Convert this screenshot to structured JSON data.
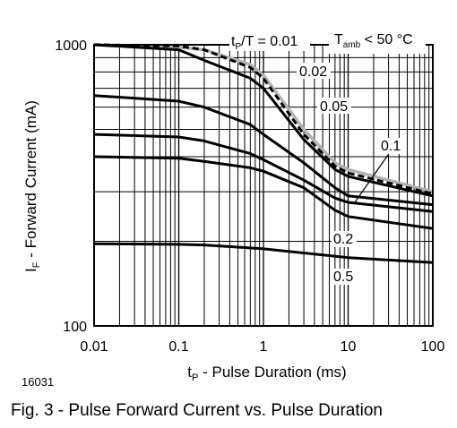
{
  "chart_data": {
    "type": "line",
    "xscale": "log",
    "yscale": "log",
    "xlim": [
      0.01,
      100
    ],
    "ylim": [
      100,
      1000
    ],
    "grid": true,
    "xticks": [
      "0.01",
      "0.1",
      "1",
      "10",
      "100"
    ],
    "yticks": [
      "100",
      "1000"
    ],
    "ylabel": "I_F - Forward Current (mA)",
    "xlabel": "t_P - Pulse Duration (ms)",
    "figure_id": "16031",
    "caption": "Fig. 3 - Pulse Forward Current vs. Pulse Duration",
    "condition": "T_amb < 50 °C",
    "series": [
      {
        "name": "t_P/T = 0.01",
        "style": "gray",
        "x": [
          0.01,
          0.1,
          0.2,
          0.7,
          1,
          3,
          7,
          10,
          100
        ],
        "y": [
          1000,
          980,
          960,
          850,
          780,
          500,
          380,
          360,
          300
        ]
      },
      {
        "name": "dashed",
        "style": "dashed",
        "x": [
          0.01,
          0.1,
          0.2,
          0.7,
          1,
          3,
          7,
          10,
          100
        ],
        "y": [
          1000,
          990,
          960,
          830,
          760,
          480,
          370,
          350,
          295
        ]
      },
      {
        "name": "0.02",
        "style": "solid",
        "x": [
          0.01,
          0.1,
          0.2,
          0.7,
          1,
          3,
          7,
          10,
          100
        ],
        "y": [
          1000,
          960,
          880,
          760,
          700,
          460,
          360,
          340,
          290
        ]
      },
      {
        "name": "0.05",
        "style": "solid",
        "x": [
          0.01,
          0.1,
          0.2,
          0.7,
          1,
          3,
          7,
          10,
          100
        ],
        "y": [
          660,
          630,
          600,
          520,
          480,
          380,
          310,
          290,
          270
        ]
      },
      {
        "name": "0.1",
        "style": "solid",
        "x": [
          0.01,
          0.1,
          0.2,
          0.7,
          1,
          3,
          7,
          10,
          100
        ],
        "y": [
          480,
          470,
          455,
          410,
          390,
          330,
          285,
          275,
          255
        ]
      },
      {
        "name": "0.2",
        "style": "solid",
        "x": [
          0.01,
          0.1,
          0.2,
          0.7,
          1,
          3,
          7,
          10,
          100
        ],
        "y": [
          400,
          395,
          385,
          365,
          355,
          310,
          258,
          245,
          222
        ]
      },
      {
        "name": "0.5",
        "style": "solid",
        "x": [
          0.01,
          0.1,
          0.2,
          1,
          10,
          100
        ],
        "y": [
          196,
          195,
          194,
          188,
          175,
          168
        ]
      }
    ]
  }
}
